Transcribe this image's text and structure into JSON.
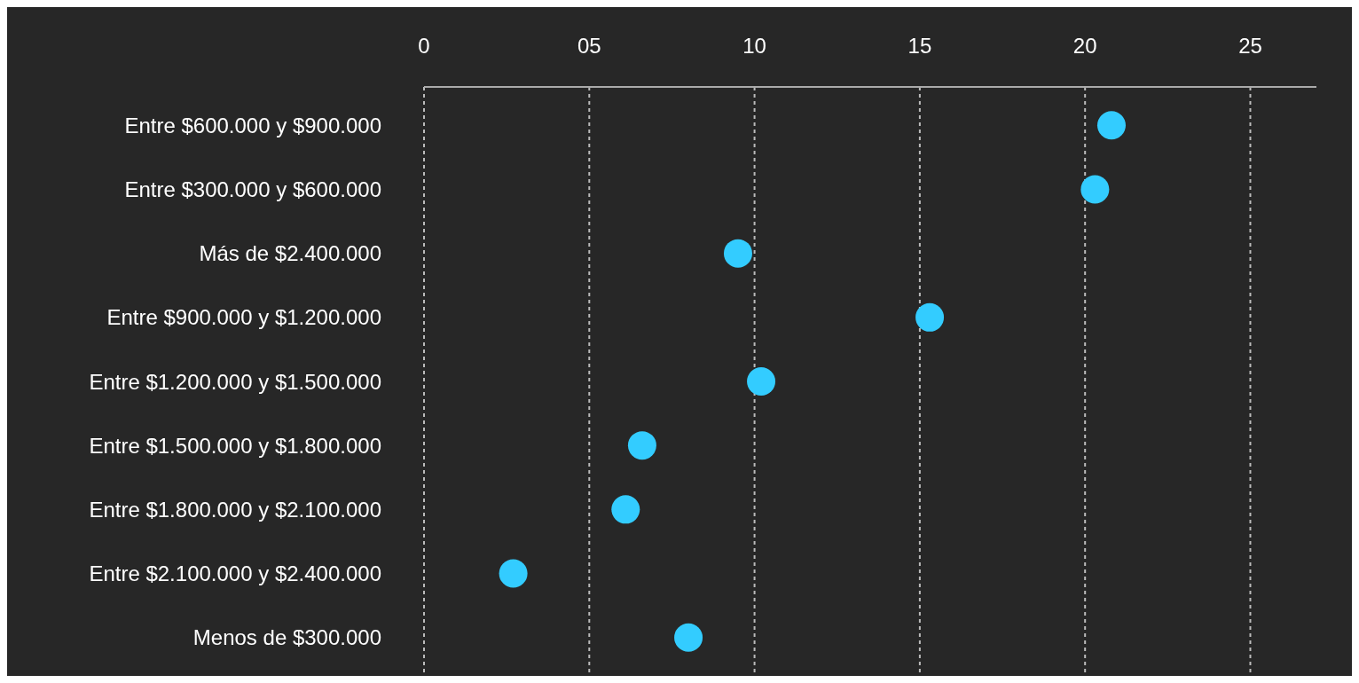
{
  "chart_data": {
    "type": "scatter",
    "categories": [
      "Entre $600.000 y $900.000",
      "Entre $300.000 y $600.000",
      "Más de $2.400.000",
      "Entre $900.000 y $1.200.000",
      "Entre $1.200.000 y $1.500.000",
      "Entre $1.500.000 y $1.800.000",
      "Entre $1.800.000 y $2.100.000",
      "Entre $2.100.000 y $2.400.000",
      "Menos de $300.000"
    ],
    "orientation": "horizontal",
    "values": [
      20.8,
      20.3,
      9.5,
      15.3,
      10.2,
      6.6,
      6.1,
      2.7,
      8.0
    ],
    "color": "#33ccff",
    "xlim": [
      0,
      27
    ],
    "xticks": [
      0,
      {
        "value": 5,
        "label": "05"
      },
      10,
      15,
      20,
      25
    ],
    "grid": "x",
    "marker": "circle"
  }
}
